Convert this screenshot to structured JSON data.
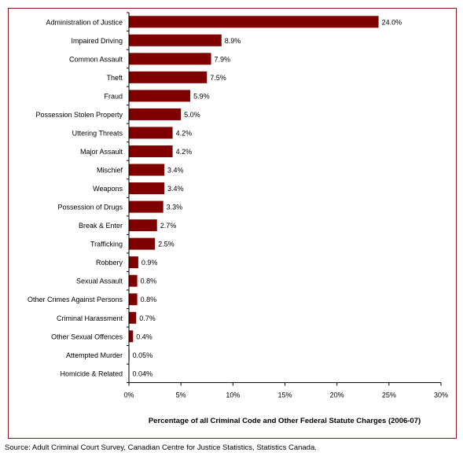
{
  "chart_data": {
    "type": "bar",
    "orientation": "horizontal",
    "categories": [
      "Administration of Justice",
      "Impaired Driving",
      "Common Assault",
      "Theft",
      "Fraud",
      "Possession Stolen Property",
      "Uttering Threats",
      "Major Assault",
      "Mischief",
      "Weapons",
      "Possession of Drugs",
      "Break & Enter",
      "Trafficking",
      "Robbery",
      "Sexual Assault",
      "Other Crimes Against Persons",
      "Criminal Harassment",
      "Other Sexual Offences",
      "Attempted Murder",
      "Homicide & Related"
    ],
    "values": [
      24.0,
      8.9,
      7.9,
      7.5,
      5.9,
      5.0,
      4.2,
      4.2,
      3.4,
      3.4,
      3.3,
      2.7,
      2.5,
      0.9,
      0.8,
      0.8,
      0.7,
      0.4,
      0.05,
      0.04
    ],
    "data_labels": [
      "24.0%",
      "8.9%",
      "7.9%",
      "7.5%",
      "5.9%",
      "5.0%",
      "4.2%",
      "4.2%",
      "3.4%",
      "3.4%",
      "3.3%",
      "2.7%",
      "2.5%",
      "0.9%",
      "0.8%",
      "0.8%",
      "0.7%",
      "0.4%",
      "0.05%",
      "0.04%"
    ],
    "xlabel": "Percentage of all Criminal Code and Other Federal Statute Charges (2006-07)",
    "xlim": [
      0,
      30
    ],
    "x_ticks": [
      0,
      5,
      10,
      15,
      20,
      25,
      30
    ],
    "x_tick_labels": [
      "0%",
      "5%",
      "10%",
      "15%",
      "20%",
      "25%",
      "30%"
    ],
    "grid": false,
    "bar_color": "#800000",
    "border_color": "#8b1a1a"
  },
  "source": "Source:  Adult Criminal Court Survey, Canadian Centre for Justice Statistics, Statistics Canada."
}
